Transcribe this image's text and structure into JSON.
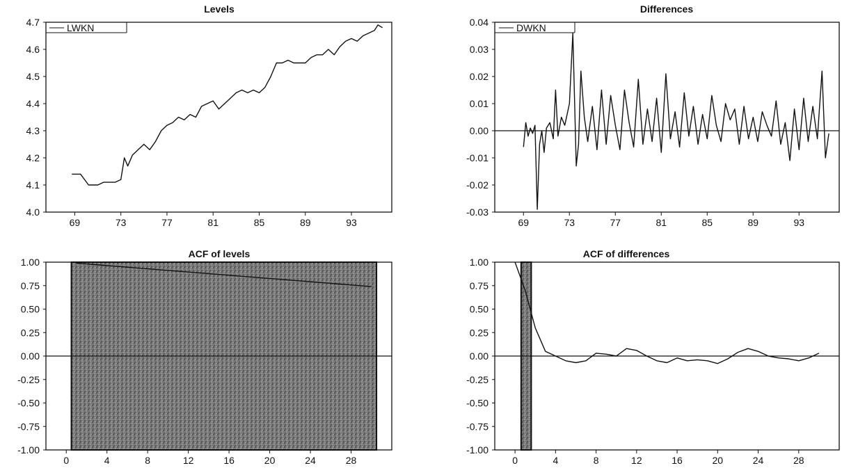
{
  "chart_data": [
    {
      "type": "line",
      "title": "Levels",
      "legend": "LWKN",
      "legend_position": "top-left",
      "xlim": [
        1966.5,
        1996.5
      ],
      "ylim": [
        4.0,
        4.7
      ],
      "x_ticks": [
        "69",
        "73",
        "77",
        "81",
        "85",
        "89",
        "93"
      ],
      "x_tick_values": [
        1969,
        1973,
        1977,
        1981,
        1985,
        1989,
        1993
      ],
      "y_ticks": [
        "4.0",
        "4.1",
        "4.2",
        "4.3",
        "4.4",
        "4.5",
        "4.6",
        "4.7"
      ],
      "y_tick_values": [
        4.0,
        4.1,
        4.2,
        4.3,
        4.4,
        4.5,
        4.6,
        4.7
      ],
      "grid": false,
      "x": [
        1968.75,
        1969.5,
        1970.2,
        1970.5,
        1971.0,
        1971.5,
        1972.0,
        1972.5,
        1973.0,
        1973.3,
        1973.6,
        1974.0,
        1974.5,
        1975.0,
        1975.5,
        1976.0,
        1976.5,
        1977.0,
        1977.5,
        1978.0,
        1978.5,
        1979.0,
        1979.5,
        1980.0,
        1980.5,
        1981.0,
        1981.5,
        1982.0,
        1982.5,
        1983.0,
        1983.5,
        1984.0,
        1984.5,
        1985.0,
        1985.5,
        1986.0,
        1986.5,
        1987.0,
        1987.5,
        1988.0,
        1988.5,
        1989.0,
        1989.5,
        1990.0,
        1990.5,
        1991.0,
        1991.5,
        1992.0,
        1992.5,
        1993.0,
        1993.5,
        1994.0,
        1994.5,
        1995.0,
        1995.3,
        1995.7
      ],
      "values": [
        4.14,
        4.14,
        4.1,
        4.1,
        4.1,
        4.11,
        4.11,
        4.11,
        4.12,
        4.2,
        4.17,
        4.21,
        4.23,
        4.25,
        4.23,
        4.26,
        4.3,
        4.32,
        4.33,
        4.35,
        4.34,
        4.36,
        4.35,
        4.39,
        4.4,
        4.41,
        4.38,
        4.4,
        4.42,
        4.44,
        4.45,
        4.44,
        4.45,
        4.44,
        4.46,
        4.5,
        4.55,
        4.55,
        4.56,
        4.55,
        4.55,
        4.55,
        4.57,
        4.58,
        4.58,
        4.6,
        4.58,
        4.61,
        4.63,
        4.64,
        4.63,
        4.65,
        4.66,
        4.67,
        4.69,
        4.68
      ]
    },
    {
      "type": "line",
      "title": "Differences",
      "legend": "DWKN",
      "legend_position": "top-left",
      "xlim": [
        1966.5,
        1996.5
      ],
      "ylim": [
        -0.03,
        0.04
      ],
      "x_ticks": [
        "69",
        "73",
        "77",
        "81",
        "85",
        "89",
        "93"
      ],
      "x_tick_values": [
        1969,
        1973,
        1977,
        1981,
        1985,
        1989,
        1993
      ],
      "y_ticks": [
        "-0.03",
        "-0.02",
        "-0.01",
        "0.00",
        "0.01",
        "0.02",
        "0.03",
        "0.04"
      ],
      "y_tick_values": [
        -0.03,
        -0.02,
        -0.01,
        0.0,
        0.01,
        0.02,
        0.03,
        0.04
      ],
      "zero_line": true,
      "grid": false,
      "x": [
        1969.0,
        1969.2,
        1969.4,
        1969.6,
        1969.8,
        1970.0,
        1970.2,
        1970.4,
        1970.6,
        1970.8,
        1971.0,
        1971.3,
        1971.6,
        1971.8,
        1972.0,
        1972.3,
        1972.6,
        1973.0,
        1973.3,
        1973.6,
        1973.8,
        1974.0,
        1974.3,
        1974.6,
        1975.0,
        1975.4,
        1975.8,
        1976.2,
        1976.6,
        1977.0,
        1977.4,
        1977.8,
        1978.2,
        1978.6,
        1979.0,
        1979.4,
        1979.8,
        1980.2,
        1980.6,
        1981.0,
        1981.4,
        1981.8,
        1982.2,
        1982.6,
        1983.0,
        1983.4,
        1983.8,
        1984.2,
        1984.6,
        1985.0,
        1985.4,
        1985.8,
        1986.2,
        1986.6,
        1987.0,
        1987.4,
        1987.8,
        1988.2,
        1988.6,
        1989.0,
        1989.4,
        1989.8,
        1990.2,
        1990.6,
        1991.0,
        1991.4,
        1991.8,
        1992.2,
        1992.6,
        1993.0,
        1993.4,
        1993.8,
        1994.2,
        1994.6,
        1995.0,
        1995.3,
        1995.6
      ],
      "values": [
        -0.006,
        0.003,
        -0.002,
        0.001,
        -0.001,
        0.002,
        -0.029,
        -0.005,
        0.0,
        -0.008,
        0.001,
        0.003,
        -0.003,
        0.015,
        -0.002,
        0.005,
        0.002,
        0.01,
        0.036,
        -0.013,
        -0.005,
        0.022,
        0.005,
        -0.004,
        0.009,
        -0.007,
        0.015,
        -0.005,
        0.013,
        0.002,
        -0.007,
        0.015,
        0.003,
        -0.006,
        0.019,
        -0.005,
        0.008,
        -0.004,
        0.012,
        -0.008,
        0.021,
        -0.003,
        0.007,
        -0.006,
        0.014,
        -0.002,
        0.009,
        -0.005,
        0.006,
        -0.003,
        0.013,
        0.002,
        -0.004,
        0.01,
        0.004,
        0.008,
        -0.005,
        0.009,
        -0.003,
        0.005,
        -0.004,
        0.007,
        0.002,
        -0.002,
        0.011,
        -0.005,
        0.003,
        -0.011,
        0.008,
        -0.007,
        0.012,
        -0.004,
        0.009,
        -0.003,
        0.022,
        -0.01,
        -0.001
      ]
    },
    {
      "type": "bar",
      "title": "ACF of levels",
      "xlim": [
        -2,
        32
      ],
      "ylim": [
        -1.0,
        1.0
      ],
      "x_ticks": [
        "0",
        "4",
        "8",
        "12",
        "16",
        "20",
        "24",
        "28"
      ],
      "x_tick_values": [
        0,
        4,
        8,
        12,
        16,
        20,
        24,
        28
      ],
      "y_ticks": [
        "-1.00",
        "-0.75",
        "-0.50",
        "-0.25",
        "0.00",
        "0.25",
        "0.50",
        "0.75",
        "1.00"
      ],
      "y_tick_values": [
        -1.0,
        -0.75,
        -0.5,
        -0.25,
        0.0,
        0.25,
        0.5,
        0.75,
        1.0
      ],
      "zero_line": true,
      "grid": false,
      "band": {
        "x_from": 0.5,
        "x_to": 30.5,
        "y_from": -1.0,
        "y_to": 1.0
      },
      "acf_lags": [
        1,
        30
      ],
      "acf_values": [
        0.99,
        0.74
      ]
    },
    {
      "type": "line",
      "title": "ACF of differences",
      "xlim": [
        -2,
        32
      ],
      "ylim": [
        -1.0,
        1.0
      ],
      "x_ticks": [
        "0",
        "4",
        "8",
        "12",
        "16",
        "20",
        "24",
        "28"
      ],
      "x_tick_values": [
        0,
        4,
        8,
        12,
        16,
        20,
        24,
        28
      ],
      "y_ticks": [
        "-1.00",
        "-0.75",
        "-0.50",
        "-0.25",
        "0.00",
        "0.25",
        "0.50",
        "0.75",
        "1.00"
      ],
      "y_tick_values": [
        -1.0,
        -0.75,
        -0.5,
        -0.25,
        0.0,
        0.25,
        0.5,
        0.75,
        1.0
      ],
      "zero_line": true,
      "grid": false,
      "band": {
        "x_from": 0.6,
        "x_to": 1.6,
        "y_from": -1.0,
        "y_to": 1.0
      },
      "x": [
        0,
        1,
        2,
        3,
        4,
        5,
        6,
        7,
        8,
        9,
        10,
        11,
        12,
        13,
        14,
        15,
        16,
        17,
        18,
        19,
        20,
        21,
        22,
        23,
        24,
        25,
        26,
        27,
        28,
        29,
        30
      ],
      "values": [
        1.0,
        0.7,
        0.3,
        0.05,
        0.0,
        -0.05,
        -0.07,
        -0.05,
        0.03,
        0.02,
        0.0,
        0.08,
        0.06,
        0.0,
        -0.05,
        -0.07,
        -0.02,
        -0.05,
        -0.04,
        -0.05,
        -0.08,
        -0.03,
        0.04,
        0.08,
        0.05,
        0.0,
        -0.02,
        -0.03,
        -0.05,
        -0.02,
        0.03
      ]
    }
  ]
}
